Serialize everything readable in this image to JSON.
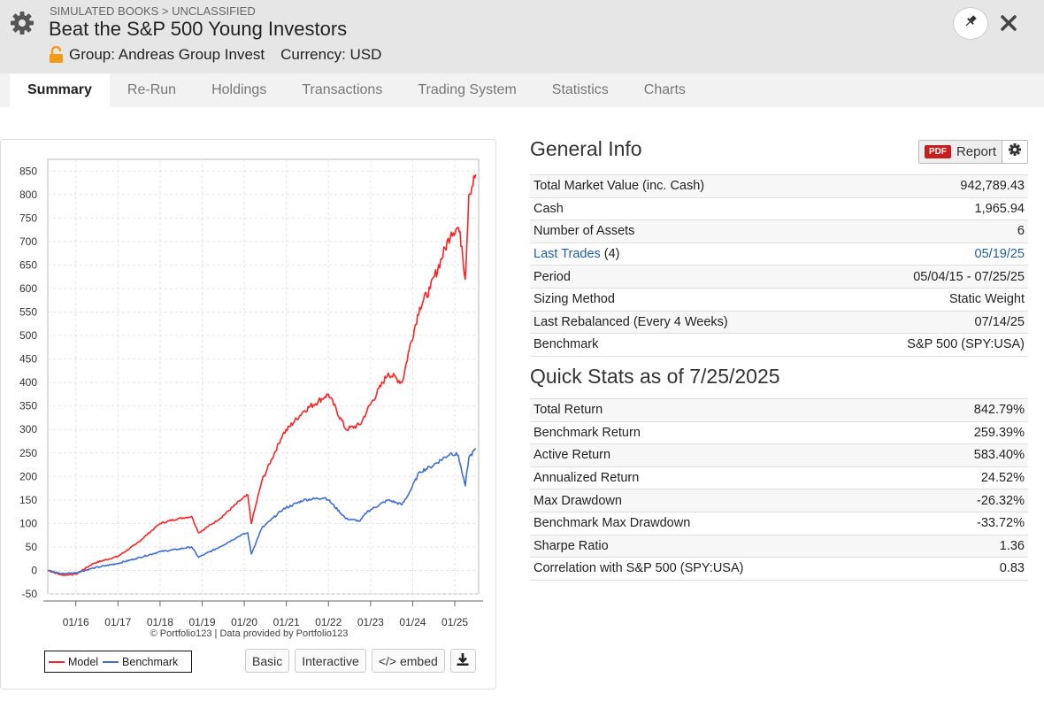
{
  "header": {
    "breadcrumb": "SIMULATED BOOKS > UNCLASSIFIED",
    "title": "Beat the S&P 500 Young Investors",
    "group": "Group: Andreas Group Invest",
    "currency": "Currency: USD",
    "icons": {
      "settings": "gear-icon",
      "lock": "lock-open-icon",
      "pin": "pin-icon",
      "close": "close-icon"
    }
  },
  "tabs": [
    {
      "label": "Summary",
      "active": true
    },
    {
      "label": "Re-Run"
    },
    {
      "label": "Holdings"
    },
    {
      "label": "Transactions"
    },
    {
      "label": "Trading System"
    },
    {
      "label": "Statistics"
    },
    {
      "label": "Charts"
    }
  ],
  "chart": {
    "credit": "© Portfolio123 | Data provided by Portfolio123",
    "legend": [
      {
        "name": "Model",
        "color": "#ff2424"
      },
      {
        "name": "Benchmark",
        "color": "#3f6fd6"
      }
    ],
    "buttons": {
      "basic": "Basic",
      "interactive": "Interactive",
      "embed": "</> embed",
      "download_icon": "download-icon"
    }
  },
  "chart_data": {
    "type": "line",
    "ylim": [
      -50,
      875
    ],
    "yticks": [
      -50,
      0,
      50,
      100,
      150,
      200,
      250,
      300,
      350,
      400,
      450,
      500,
      550,
      600,
      650,
      700,
      750,
      800,
      850
    ],
    "xticks": [
      "01/16",
      "01/17",
      "01/18",
      "01/19",
      "01/20",
      "01/21",
      "01/22",
      "01/23",
      "01/24",
      "01/25"
    ],
    "x": [
      "05/15",
      "09/15",
      "01/16",
      "06/16",
      "01/17",
      "06/17",
      "01/18",
      "06/18",
      "10/18",
      "12/18",
      "06/19",
      "12/19",
      "02/20",
      "03/20",
      "06/20",
      "12/20",
      "06/21",
      "12/21",
      "01/22",
      "06/22",
      "10/22",
      "12/22",
      "06/23",
      "10/23",
      "12/23",
      "03/24",
      "06/24",
      "12/24",
      "02/25",
      "03/25",
      "04/25",
      "05/25",
      "07/25"
    ],
    "series": [
      {
        "name": "Model",
        "values": [
          0,
          -10,
          -8,
          15,
          30,
          55,
          100,
          110,
          115,
          80,
          110,
          150,
          160,
          100,
          190,
          290,
          340,
          370,
          375,
          300,
          310,
          340,
          420,
          400,
          470,
          560,
          600,
          720,
          730,
          690,
          620,
          800,
          843
        ]
      },
      {
        "name": "Benchmark",
        "values": [
          0,
          -7,
          -5,
          5,
          15,
          25,
          40,
          45,
          50,
          28,
          50,
          75,
          80,
          35,
          90,
          130,
          150,
          155,
          150,
          110,
          105,
          125,
          150,
          140,
          165,
          210,
          220,
          250,
          245,
          210,
          180,
          240,
          259
        ]
      }
    ]
  },
  "general_info": {
    "title": "General Info",
    "report_label": "Report",
    "pdf_label": "PDF",
    "rows": [
      {
        "label": "Total Market Value (inc. Cash)",
        "value": "942,789.43"
      },
      {
        "label": "Cash",
        "value": "1,965.94"
      },
      {
        "label": "Number of Assets",
        "value": "6"
      },
      {
        "label": "Last Trades",
        "label_suffix": " (4)",
        "value": "05/19/25"
      },
      {
        "label": "Period",
        "value": "05/04/15 - 07/25/25"
      },
      {
        "label": "Sizing Method",
        "value": "Static Weight"
      },
      {
        "label": "Last Rebalanced (Every 4 Weeks)",
        "value": "07/14/25"
      },
      {
        "label": "Benchmark",
        "value": "S&P 500 (SPY:USA)"
      }
    ]
  },
  "quick_stats": {
    "title": "Quick Stats as of 7/25/2025",
    "rows": [
      {
        "label": "Total Return",
        "value": "842.79%"
      },
      {
        "label": "Benchmark Return",
        "value": "259.39%"
      },
      {
        "label": "Active Return",
        "value": "583.40%"
      },
      {
        "label": "Annualized Return",
        "value": "24.52%"
      },
      {
        "label": "Max Drawdown",
        "value": "-26.32%"
      },
      {
        "label": "Benchmark Max Drawdown",
        "value": "-33.72%"
      },
      {
        "label": "Sharpe Ratio",
        "value": "1.36"
      },
      {
        "label": "Correlation with S&P 500 (SPY:USA)",
        "value": "0.83"
      }
    ]
  }
}
